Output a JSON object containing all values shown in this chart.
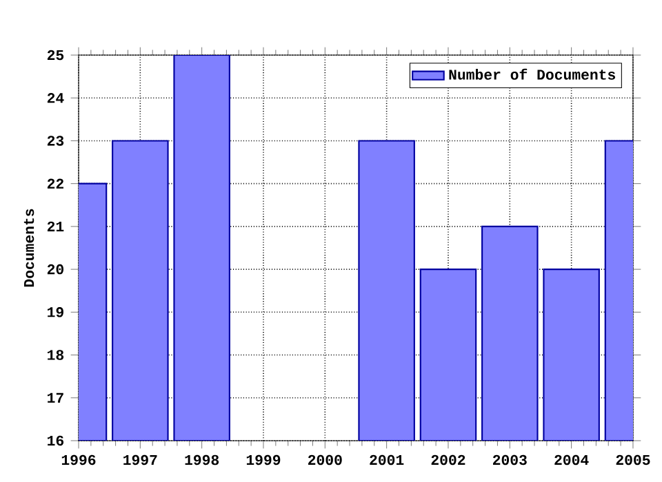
{
  "chart_data": {
    "type": "bar",
    "ylabel": "Documents",
    "x": [
      1996,
      1997,
      1998,
      1999,
      2000,
      2001,
      2002,
      2003,
      2004,
      2005
    ],
    "series": [
      {
        "name": "Number of Documents",
        "color": "#8080ff",
        "values": [
          22,
          23,
          25,
          null,
          null,
          23,
          20,
          21,
          20,
          23
        ]
      }
    ],
    "xlim": [
      1996,
      2005
    ],
    "xticks": [
      1996,
      1997,
      1998,
      1999,
      2000,
      2001,
      2002,
      2003,
      2004,
      2005
    ],
    "ylim": [
      16,
      25
    ],
    "yticks": [
      16,
      17,
      18,
      19,
      20,
      21,
      22,
      23,
      24,
      25
    ],
    "grid": true,
    "legend": "top right"
  }
}
